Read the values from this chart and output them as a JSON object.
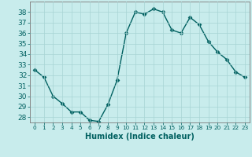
{
  "x": [
    0,
    1,
    2,
    3,
    4,
    5,
    6,
    7,
    8,
    9,
    10,
    11,
    12,
    13,
    14,
    15,
    16,
    17,
    18,
    19,
    20,
    21,
    22,
    23
  ],
  "y": [
    32.5,
    31.8,
    30.0,
    29.3,
    28.5,
    28.5,
    27.7,
    27.6,
    29.2,
    31.5,
    36.0,
    38.0,
    37.8,
    38.3,
    38.0,
    36.3,
    36.0,
    37.5,
    36.8,
    35.2,
    34.2,
    33.5,
    32.3,
    31.8
  ],
  "line_color": "#006060",
  "marker": "D",
  "markersize": 2.5,
  "linewidth": 1.0,
  "background_color": "#c8ecec",
  "grid_color": "#a8d4d4",
  "xlabel": "Humidex (Indice chaleur)",
  "ylim": [
    27.5,
    39.0
  ],
  "xlim": [
    -0.5,
    23.5
  ],
  "yticks": [
    28,
    29,
    30,
    31,
    32,
    33,
    34,
    35,
    36,
    37,
    38
  ],
  "xticks": [
    0,
    1,
    2,
    3,
    4,
    5,
    6,
    7,
    8,
    9,
    10,
    11,
    12,
    13,
    14,
    15,
    16,
    17,
    18,
    19,
    20,
    21,
    22,
    23
  ],
  "xlabel_fontsize": 7,
  "tick_fontsize": 6.5,
  "xtick_fontsize": 5.2
}
